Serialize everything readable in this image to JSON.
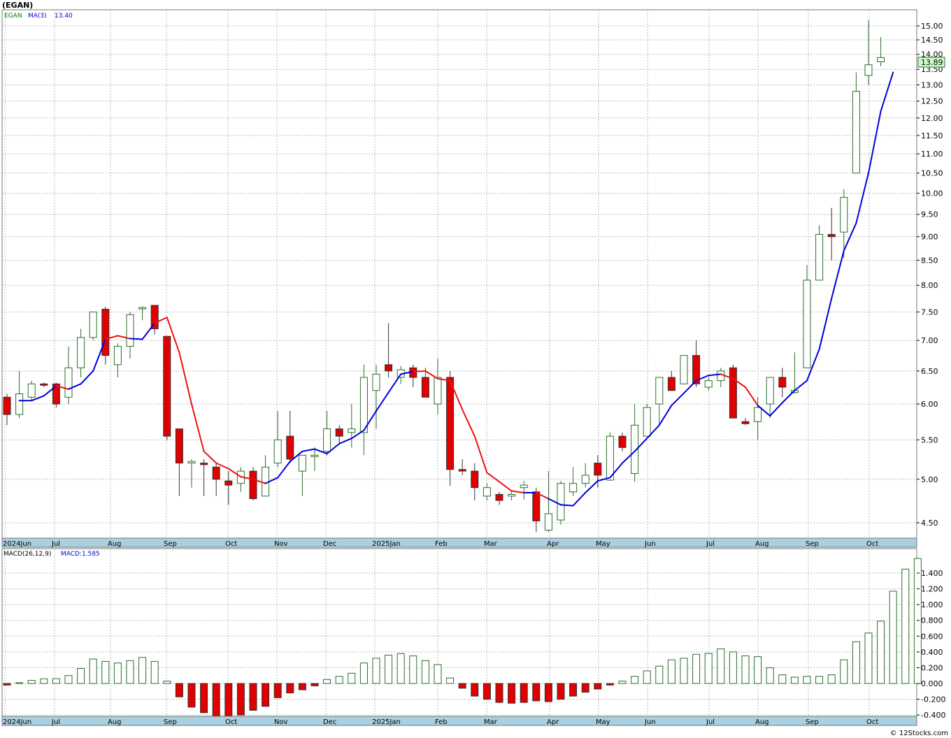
{
  "header": {
    "title": "(EGAN)"
  },
  "footer": {
    "credit": "© 12Stocks.com"
  },
  "price_panel": {
    "symbol": "EGAN",
    "ma_label": "MA(3)",
    "ma_value": "13.40",
    "last_price": "13.89",
    "y_ticks": [
      "4.50",
      "5.00",
      "5.50",
      "6.00",
      "6.50",
      "7.00",
      "7.50",
      "8.00",
      "8.50",
      "9.00",
      "9.50",
      "10.00",
      "10.50",
      "11.00",
      "11.50",
      "12.00",
      "12.50",
      "13.00",
      "13.50",
      "14.00",
      "14.50",
      "15.00"
    ],
    "x_labels": [
      "2024Jun",
      "Jul",
      "Aug",
      "Sep",
      "Oct",
      "Nov",
      "Dec",
      "2025Jan",
      "Feb",
      "Mar",
      "Apr",
      "May",
      "Jun",
      "Jul",
      "Aug",
      "Sep",
      "Oct"
    ]
  },
  "macd_panel": {
    "label": "MACD(26,12,9)",
    "value_label": "MACD:1.585",
    "y_ticks": [
      "-0.400",
      "-0.200",
      "0.000",
      "0.200",
      "0.400",
      "0.600",
      "0.800",
      "1.000",
      "1.200",
      "1.400"
    ],
    "x_labels": [
      "2024Jun",
      "Jul",
      "Aug",
      "Sep",
      "Oct",
      "Nov",
      "Dec",
      "2025Jan",
      "Feb",
      "Mar",
      "Apr",
      "May",
      "Jun",
      "Jul",
      "Aug",
      "Sep",
      "Oct"
    ]
  },
  "colors": {
    "up": "#2a6e2a",
    "down": "#e00000",
    "ma_up": "#0000dd",
    "ma_down": "#ee1111",
    "axis_band": "#a8d0e0",
    "label_bg": "#ccffcc"
  },
  "chart_data": [
    {
      "type": "candlestick",
      "scale": "log",
      "ylim": [
        4.3,
        15.5
      ],
      "grid": true,
      "candles": [
        {
          "o": 6.1,
          "h": 6.15,
          "l": 5.7,
          "c": 5.85
        },
        {
          "o": 5.85,
          "h": 6.5,
          "l": 5.8,
          "c": 6.15
        },
        {
          "o": 6.1,
          "h": 6.35,
          "l": 6.05,
          "c": 6.3
        },
        {
          "o": 6.3,
          "h": 6.32,
          "l": 6.25,
          "c": 6.28
        },
        {
          "o": 6.3,
          "h": 6.32,
          "l": 5.95,
          "c": 6.0
        },
        {
          "o": 6.1,
          "h": 6.9,
          "l": 6.0,
          "c": 6.55
        },
        {
          "o": 6.55,
          "h": 7.2,
          "l": 6.4,
          "c": 7.05
        },
        {
          "o": 7.05,
          "h": 7.5,
          "l": 7.0,
          "c": 7.5
        },
        {
          "o": 7.55,
          "h": 7.6,
          "l": 6.6,
          "c": 6.75
        },
        {
          "o": 6.6,
          "h": 6.95,
          "l": 6.4,
          "c": 6.9
        },
        {
          "o": 6.9,
          "h": 7.5,
          "l": 6.7,
          "c": 7.45
        },
        {
          "o": 7.58,
          "h": 7.6,
          "l": 7.35,
          "c": 7.58
        },
        {
          "o": 7.62,
          "h": 7.62,
          "l": 7.1,
          "c": 7.2
        },
        {
          "o": 7.07,
          "h": 7.07,
          "l": 5.5,
          "c": 5.55
        },
        {
          "o": 5.65,
          "h": 5.65,
          "l": 4.8,
          "c": 5.2
        },
        {
          "o": 5.2,
          "h": 5.25,
          "l": 4.9,
          "c": 5.22
        },
        {
          "o": 5.2,
          "h": 5.25,
          "l": 4.8,
          "c": 5.18
        },
        {
          "o": 5.15,
          "h": 5.2,
          "l": 4.8,
          "c": 5.0
        },
        {
          "o": 4.98,
          "h": 5.1,
          "l": 4.7,
          "c": 4.93
        },
        {
          "o": 4.95,
          "h": 5.15,
          "l": 4.85,
          "c": 5.1
        },
        {
          "o": 5.1,
          "h": 5.15,
          "l": 4.75,
          "c": 4.77
        },
        {
          "o": 4.8,
          "h": 5.3,
          "l": 4.8,
          "c": 5.15
        },
        {
          "o": 5.2,
          "h": 5.9,
          "l": 5.15,
          "c": 5.5
        },
        {
          "o": 5.55,
          "h": 5.9,
          "l": 5.2,
          "c": 5.25
        },
        {
          "o": 5.1,
          "h": 5.3,
          "l": 4.8,
          "c": 5.3
        },
        {
          "o": 5.3,
          "h": 5.4,
          "l": 5.1,
          "c": 5.3
        },
        {
          "o": 5.35,
          "h": 5.9,
          "l": 5.3,
          "c": 5.65
        },
        {
          "o": 5.65,
          "h": 5.7,
          "l": 5.45,
          "c": 5.55
        },
        {
          "o": 5.6,
          "h": 6.0,
          "l": 5.4,
          "c": 5.65
        },
        {
          "o": 5.6,
          "h": 6.6,
          "l": 5.3,
          "c": 6.4
        },
        {
          "o": 6.2,
          "h": 6.6,
          "l": 5.65,
          "c": 6.45
        },
        {
          "o": 6.6,
          "h": 7.3,
          "l": 6.4,
          "c": 6.5
        },
        {
          "o": 6.4,
          "h": 6.58,
          "l": 6.3,
          "c": 6.52
        },
        {
          "o": 6.55,
          "h": 6.6,
          "l": 6.25,
          "c": 6.4
        },
        {
          "o": 6.4,
          "h": 6.55,
          "l": 6.1,
          "c": 6.1
        },
        {
          "o": 6.0,
          "h": 6.7,
          "l": 5.85,
          "c": 6.4
        },
        {
          "o": 6.4,
          "h": 6.5,
          "l": 4.92,
          "c": 5.12
        },
        {
          "o": 5.12,
          "h": 5.25,
          "l": 5.05,
          "c": 5.1
        },
        {
          "o": 5.1,
          "h": 5.2,
          "l": 4.75,
          "c": 4.9
        },
        {
          "o": 4.8,
          "h": 4.95,
          "l": 4.75,
          "c": 4.9
        },
        {
          "o": 4.82,
          "h": 4.85,
          "l": 4.7,
          "c": 4.75
        },
        {
          "o": 4.8,
          "h": 4.85,
          "l": 4.75,
          "c": 4.82
        },
        {
          "o": 4.9,
          "h": 4.98,
          "l": 4.76,
          "c": 4.93
        },
        {
          "o": 4.85,
          "h": 4.9,
          "l": 4.4,
          "c": 4.52
        },
        {
          "o": 4.42,
          "h": 5.1,
          "l": 4.4,
          "c": 4.6
        },
        {
          "o": 4.53,
          "h": 4.98,
          "l": 4.48,
          "c": 4.95
        },
        {
          "o": 4.85,
          "h": 5.15,
          "l": 4.8,
          "c": 4.95
        },
        {
          "o": 4.95,
          "h": 5.2,
          "l": 4.9,
          "c": 5.05
        },
        {
          "o": 5.2,
          "h": 5.3,
          "l": 4.9,
          "c": 5.05
        },
        {
          "o": 4.99,
          "h": 5.6,
          "l": 4.98,
          "c": 5.55
        },
        {
          "o": 5.55,
          "h": 5.6,
          "l": 5.35,
          "c": 5.4
        },
        {
          "o": 5.07,
          "h": 6.0,
          "l": 4.97,
          "c": 5.7
        },
        {
          "o": 5.55,
          "h": 6.0,
          "l": 5.6,
          "c": 5.95
        },
        {
          "o": 6.0,
          "h": 6.4,
          "l": 5.7,
          "c": 6.4
        },
        {
          "o": 6.4,
          "h": 6.5,
          "l": 6.2,
          "c": 6.2
        },
        {
          "o": 6.3,
          "h": 6.7,
          "l": 6.3,
          "c": 6.75
        },
        {
          "o": 6.75,
          "h": 7.0,
          "l": 6.25,
          "c": 6.3
        },
        {
          "o": 6.25,
          "h": 6.4,
          "l": 6.2,
          "c": 6.35
        },
        {
          "o": 6.35,
          "h": 6.55,
          "l": 6.25,
          "c": 6.5
        },
        {
          "o": 6.55,
          "h": 6.6,
          "l": 5.8,
          "c": 5.8
        },
        {
          "o": 5.75,
          "h": 5.8,
          "l": 5.7,
          "c": 5.72
        },
        {
          "o": 5.75,
          "h": 6.1,
          "l": 5.5,
          "c": 5.95
        },
        {
          "o": 6.0,
          "h": 6.4,
          "l": 5.8,
          "c": 6.4
        },
        {
          "o": 6.4,
          "h": 6.55,
          "l": 6.1,
          "c": 6.25
        },
        {
          "o": 6.17,
          "h": 6.8,
          "l": 6.15,
          "c": 6.2
        },
        {
          "o": 6.55,
          "h": 8.4,
          "l": 6.55,
          "c": 8.1
        },
        {
          "o": 8.1,
          "h": 9.25,
          "l": 8.1,
          "c": 9.05
        },
        {
          "o": 9.05,
          "h": 9.65,
          "l": 8.5,
          "c": 9.0
        },
        {
          "o": 9.1,
          "h": 10.1,
          "l": 8.55,
          "c": 9.9
        },
        {
          "o": 10.5,
          "h": 13.4,
          "l": 10.5,
          "c": 12.8
        },
        {
          "o": 13.3,
          "h": 15.2,
          "l": 13.0,
          "c": 13.65
        },
        {
          "o": 13.75,
          "h": 14.6,
          "l": 13.6,
          "c": 13.89
        }
      ],
      "ma": [
        6.05,
        6.05,
        6.12,
        6.27,
        6.22,
        6.3,
        6.5,
        7.02,
        7.08,
        7.03,
        7.02,
        7.3,
        7.4,
        6.8,
        6.0,
        5.35,
        5.2,
        5.13,
        5.03,
        5.0,
        4.95,
        5.02,
        5.22,
        5.35,
        5.38,
        5.32,
        5.45,
        5.52,
        5.63,
        5.9,
        6.17,
        6.45,
        6.49,
        6.5,
        6.38,
        6.35,
        5.92,
        5.55,
        5.08,
        4.97,
        4.86,
        4.84,
        4.84,
        4.77,
        4.7,
        4.69,
        4.84,
        4.98,
        5.02,
        5.2,
        5.35,
        5.52,
        5.7,
        5.98,
        6.16,
        6.35,
        6.43,
        6.45,
        6.38,
        6.25,
        5.98,
        5.83,
        6.02,
        6.2,
        6.35,
        6.85,
        7.75,
        8.7,
        9.3,
        10.5,
        12.2,
        13.4
      ],
      "ma_trend": [
        "d",
        "u",
        "u",
        "u",
        "d",
        "u",
        "u",
        "u",
        "d",
        "d",
        "u",
        "u",
        "d",
        "d",
        "d",
        "d",
        "d",
        "d",
        "d",
        "d",
        "d",
        "u",
        "u",
        "u",
        "u",
        "u",
        "u",
        "u",
        "u",
        "u",
        "u",
        "u",
        "u",
        "d",
        "d",
        "d",
        "d",
        "d",
        "d",
        "d",
        "d",
        "d",
        "u",
        "d",
        "u",
        "u",
        "u",
        "u",
        "u",
        "u",
        "u",
        "u",
        "u",
        "u",
        "u",
        "u",
        "u",
        "u",
        "d",
        "d",
        "d",
        "u",
        "u",
        "u",
        "u",
        "u",
        "u",
        "u",
        "u",
        "u",
        "u",
        "u"
      ]
    },
    {
      "type": "bar",
      "ylim": [
        -0.45,
        1.6
      ],
      "grid": true,
      "values": [
        -0.02,
        0.01,
        0.04,
        0.06,
        0.06,
        0.1,
        0.19,
        0.31,
        0.28,
        0.26,
        0.29,
        0.33,
        0.28,
        0.03,
        -0.17,
        -0.3,
        -0.37,
        -0.42,
        -0.44,
        -0.4,
        -0.34,
        -0.29,
        -0.18,
        -0.12,
        -0.08,
        -0.03,
        0.05,
        0.09,
        0.13,
        0.26,
        0.32,
        0.36,
        0.38,
        0.35,
        0.29,
        0.24,
        0.07,
        -0.06,
        -0.16,
        -0.2,
        -0.24,
        -0.25,
        -0.24,
        -0.22,
        -0.23,
        -0.2,
        -0.16,
        -0.11,
        -0.07,
        -0.02,
        0.03,
        0.09,
        0.16,
        0.22,
        0.3,
        0.32,
        0.37,
        0.38,
        0.44,
        0.4,
        0.35,
        0.34,
        0.2,
        0.11,
        0.08,
        0.09,
        0.09,
        0.11,
        0.3,
        0.53,
        0.64,
        0.79,
        1.17,
        1.45,
        1.585
      ]
    }
  ]
}
